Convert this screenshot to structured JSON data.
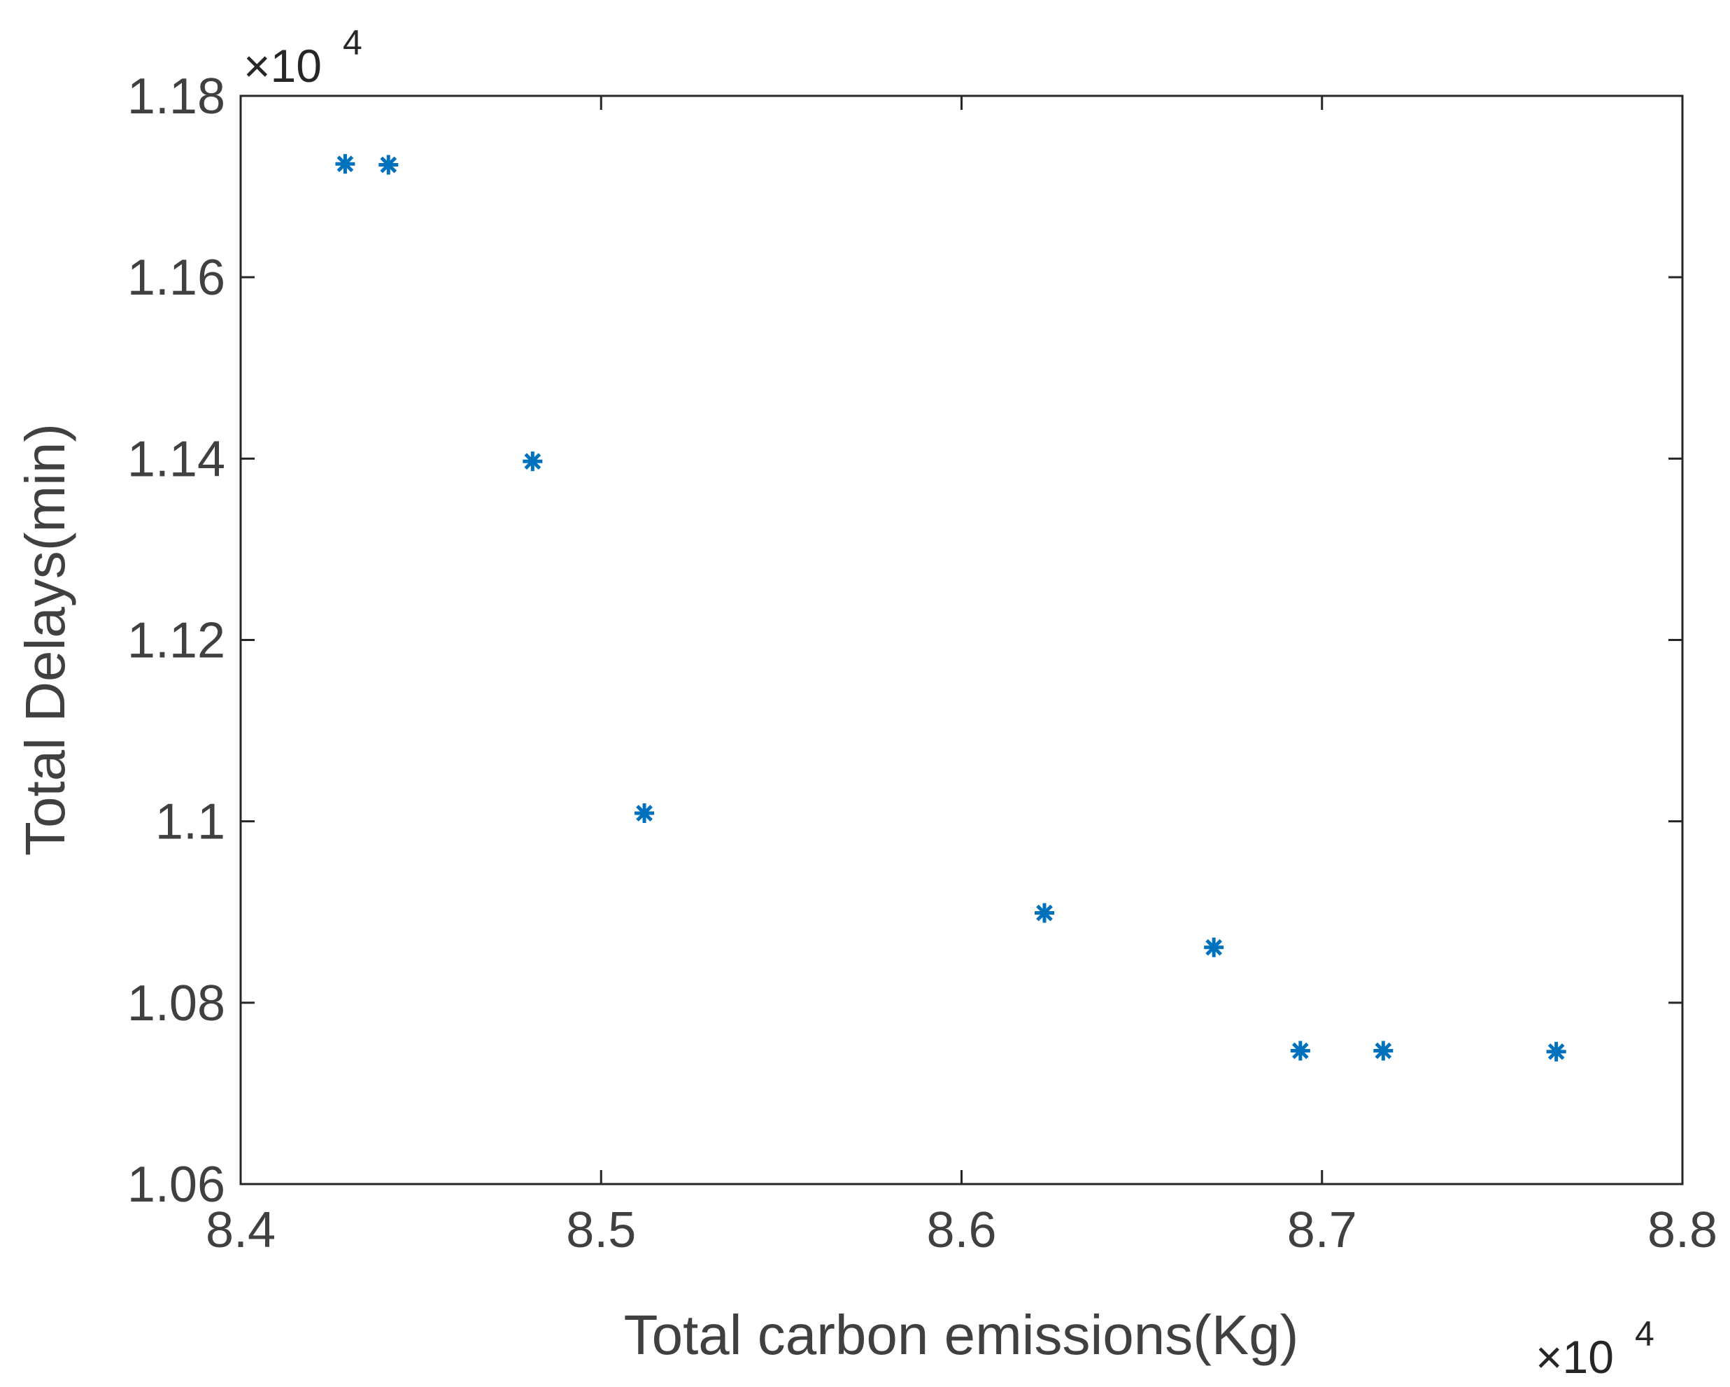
{
  "chart_data": {
    "type": "scatter",
    "title": "",
    "xlabel": "Total carbon emissions(Kg)",
    "ylabel": "Total Delays(min)",
    "x_multiplier": {
      "base": "×10",
      "power": "4"
    },
    "y_multiplier": {
      "base": "×10",
      "power": "4"
    },
    "xlim": [
      8.4,
      8.8
    ],
    "ylim": [
      1.06,
      1.18
    ],
    "xticks": [
      8.4,
      8.5,
      8.6,
      8.7,
      8.8
    ],
    "xtick_labels": [
      "8.4",
      "8.5",
      "8.6",
      "8.7",
      "8.8"
    ],
    "yticks": [
      1.06,
      1.08,
      1.1,
      1.12,
      1.14,
      1.16,
      1.18
    ],
    "ytick_labels": [
      "1.06",
      "1.08",
      "1.1",
      "1.12",
      "1.14",
      "1.16",
      "1.18"
    ],
    "grid": false,
    "marker": "asterisk",
    "color": "#0072BD",
    "axis_color": "#262626",
    "points": [
      {
        "x": 8.429,
        "y": 1.1725
      },
      {
        "x": 8.441,
        "y": 1.1724
      },
      {
        "x": 8.481,
        "y": 1.1397
      },
      {
        "x": 8.512,
        "y": 1.1009
      },
      {
        "x": 8.623,
        "y": 1.0899
      },
      {
        "x": 8.67,
        "y": 1.0861
      },
      {
        "x": 8.694,
        "y": 1.0747
      },
      {
        "x": 8.717,
        "y": 1.0747
      },
      {
        "x": 8.765,
        "y": 1.0746
      }
    ]
  }
}
